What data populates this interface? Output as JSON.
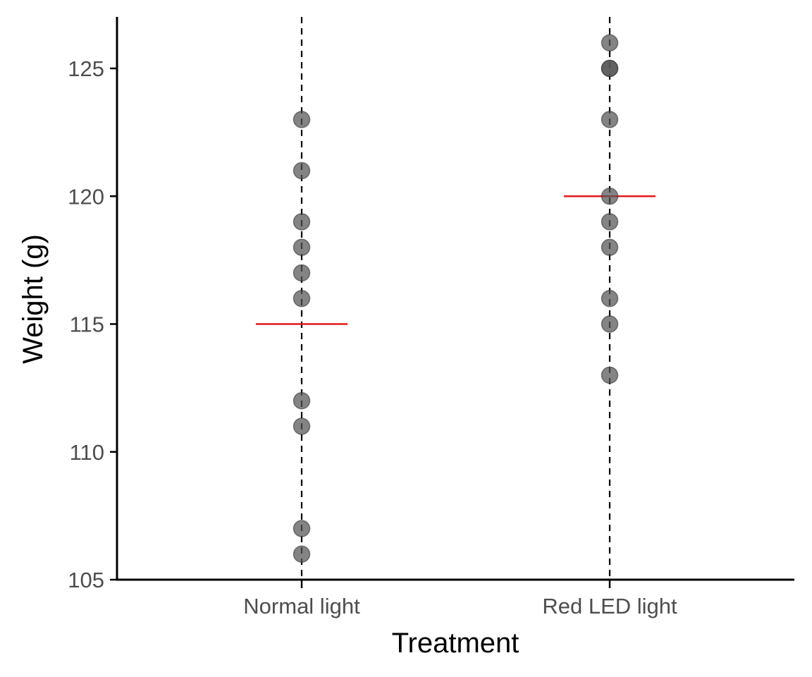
{
  "chart_data": {
    "type": "scatter",
    "title": "",
    "xlabel": "Treatment",
    "ylabel": "Weight (g)",
    "categories": [
      "Normal light",
      "Red LED light"
    ],
    "ylim": [
      105,
      127
    ],
    "yticks": [
      105,
      110,
      115,
      120,
      125
    ],
    "grid": false,
    "legend": "none",
    "series": [
      {
        "category": "Normal light",
        "values": [
          123,
          121,
          119,
          118,
          117,
          116,
          112,
          111,
          107,
          106
        ],
        "mean": 115
      },
      {
        "category": "Red LED light",
        "values": [
          126,
          125,
          125,
          123,
          120,
          119,
          118,
          116,
          115,
          113
        ],
        "mean": 120
      }
    ],
    "colors": {
      "points": "#555555",
      "mean_line": "#e31a1c",
      "guide_line": "#000000",
      "axis": "#000000"
    }
  }
}
